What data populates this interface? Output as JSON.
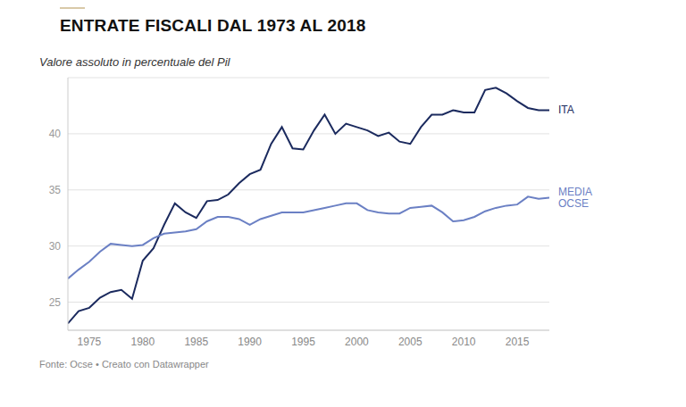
{
  "chart_data": {
    "type": "line",
    "title": "ENTRATE FISCALI DAL 1973 AL 2018",
    "subtitle": "Valore assoluto in percentuale del Pil",
    "source": "Fonte: Ocse • Creato con Datawrapper",
    "x": [
      1973,
      1974,
      1975,
      1976,
      1977,
      1978,
      1979,
      1980,
      1981,
      1982,
      1983,
      1984,
      1985,
      1986,
      1987,
      1988,
      1989,
      1990,
      1991,
      1992,
      1993,
      1994,
      1995,
      1996,
      1997,
      1998,
      1999,
      2000,
      2001,
      2002,
      2003,
      2004,
      2005,
      2006,
      2007,
      2008,
      2009,
      2010,
      2011,
      2012,
      2013,
      2014,
      2015,
      2016,
      2017,
      2018
    ],
    "series": [
      {
        "name": "ITA",
        "color": "#1b2a5e",
        "values": [
          23.1,
          24.2,
          24.5,
          25.4,
          25.9,
          26.1,
          25.3,
          28.7,
          29.8,
          31.9,
          33.8,
          33.0,
          32.5,
          34.0,
          34.1,
          34.6,
          35.6,
          36.4,
          36.8,
          39.1,
          40.6,
          38.7,
          38.6,
          40.3,
          41.7,
          40.0,
          40.9,
          40.6,
          40.3,
          39.8,
          40.1,
          39.3,
          39.1,
          40.6,
          41.7,
          41.7,
          42.1,
          41.9,
          41.9,
          43.9,
          44.1,
          43.6,
          42.9,
          42.3,
          42.1,
          42.1
        ]
      },
      {
        "name": "MEDIA OCSE",
        "color": "#6b80c4",
        "values": [
          27.1,
          27.9,
          28.6,
          29.5,
          30.2,
          30.1,
          30.0,
          30.1,
          30.7,
          31.1,
          31.2,
          31.3,
          31.5,
          32.2,
          32.6,
          32.6,
          32.4,
          31.9,
          32.4,
          32.7,
          33.0,
          33.0,
          33.0,
          33.2,
          33.4,
          33.6,
          33.8,
          33.8,
          33.2,
          33.0,
          32.9,
          32.9,
          33.4,
          33.5,
          33.6,
          33.0,
          32.2,
          32.3,
          32.6,
          33.1,
          33.4,
          33.6,
          33.7,
          34.4,
          34.2,
          34.3
        ]
      }
    ],
    "xlim": [
      1973,
      2018
    ],
    "xticks": [
      1975,
      1980,
      1985,
      1990,
      1995,
      2000,
      2005,
      2010,
      2015
    ],
    "ylim": [
      22.5,
      45
    ],
    "yticks": [
      25,
      30,
      35,
      40
    ],
    "grid": true
  }
}
